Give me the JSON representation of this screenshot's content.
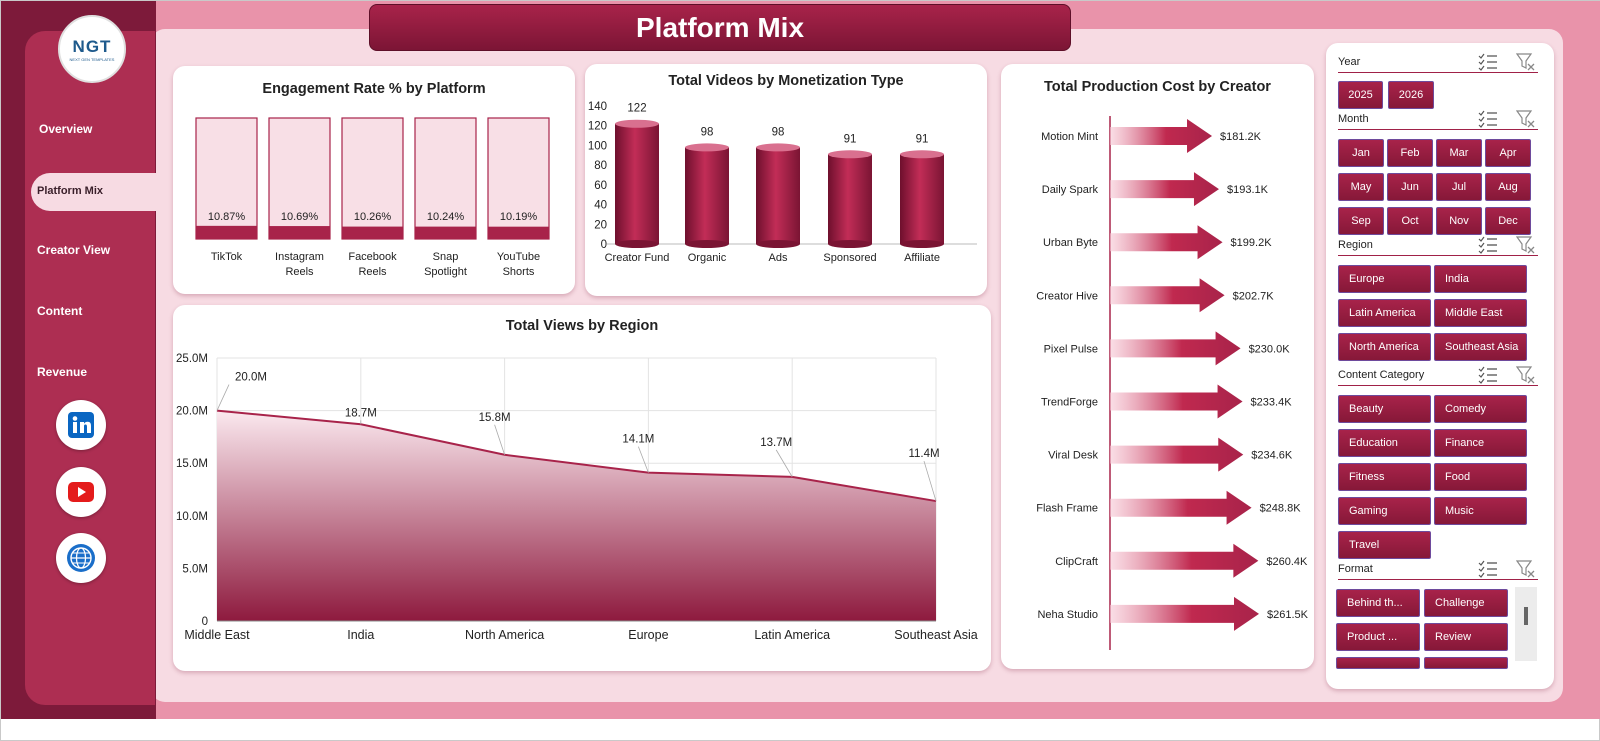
{
  "page_title": "Platform Mix",
  "logo": {
    "text": "NGT",
    "subtext": "NEXT GEN TEMPLATES"
  },
  "nav": {
    "items": [
      "Overview",
      "Platform Mix",
      "Creator View",
      "Content",
      "Revenue"
    ],
    "active": "Platform Mix"
  },
  "social": [
    "linkedin-icon",
    "youtube-icon",
    "globe-icon"
  ],
  "colors": {
    "primary": "#a8234a",
    "dark": "#7d1a3a",
    "background": "#f7dbe3",
    "accent": "#e993aa"
  },
  "engagement": {
    "title": "Engagement Rate % by Platform",
    "labels": [
      "10.87%",
      "10.69%",
      "10.26%",
      "10.24%",
      "10.19%"
    ]
  },
  "videos": {
    "title": "Total Videos by Monetization Type",
    "yticks": [
      "140",
      "120",
      "100",
      "80",
      "60",
      "40",
      "20",
      "0"
    ]
  },
  "views": {
    "title": "Total Views by Region",
    "yticks": [
      "25.0M",
      "20.0M",
      "15.0M",
      "10.0M",
      "5.0M",
      "0"
    ],
    "labels": [
      "20.0M",
      "18.7M",
      "15.8M",
      "14.1M",
      "13.7M",
      "11.4M"
    ]
  },
  "cost": {
    "title": "Total Production Cost by Creator",
    "labels": [
      "$181.2K",
      "$193.1K",
      "$199.2K",
      "$202.7K",
      "$230.0K",
      "$233.4K",
      "$234.6K",
      "$248.8K",
      "$260.4K",
      "$261.5K"
    ]
  },
  "chart_data": [
    {
      "type": "bar",
      "title": "Engagement Rate % by Platform",
      "categories": [
        "TikTok",
        "Instagram Reels",
        "Facebook Reels",
        "Snap Spotlight",
        "YouTube Shorts"
      ],
      "values": [
        10.87,
        10.69,
        10.26,
        10.24,
        10.19
      ],
      "ylim": [
        0,
        100
      ]
    },
    {
      "type": "bar",
      "title": "Total Videos by Monetization Type",
      "categories": [
        "Creator Fund",
        "Organic",
        "Ads",
        "Sponsored",
        "Affiliate"
      ],
      "values": [
        122,
        98,
        98,
        91,
        91
      ],
      "ylim": [
        0,
        140
      ]
    },
    {
      "type": "area",
      "title": "Total Views by Region",
      "categories": [
        "Middle East",
        "India",
        "North America",
        "Europe",
        "Latin America",
        "Southeast Asia"
      ],
      "values": [
        20.0,
        18.7,
        15.8,
        14.1,
        13.7,
        11.4
      ],
      "ylim": [
        0,
        25
      ],
      "grid": true
    },
    {
      "type": "bar",
      "title": "Total Production Cost by Creator",
      "categories": [
        "Motion Mint",
        "Daily Spark",
        "Urban Byte",
        "Creator Hive",
        "Pixel Pulse",
        "TrendForge",
        "Viral Desk",
        "Flash Frame",
        "ClipCraft",
        "Neha Studio"
      ],
      "values": [
        181.2,
        193.1,
        199.2,
        202.7,
        230.0,
        233.4,
        234.6,
        248.8,
        260.4,
        261.5
      ]
    }
  ],
  "filters": {
    "year": {
      "label": "Year",
      "options": [
        "2025",
        "2026"
      ]
    },
    "month": {
      "label": "Month",
      "options": [
        "Jan",
        "Feb",
        "Mar",
        "Apr",
        "May",
        "Jun",
        "Jul",
        "Aug",
        "Sep",
        "Oct",
        "Nov",
        "Dec"
      ]
    },
    "region": {
      "label": "Region",
      "options": [
        "Europe",
        "India",
        "Latin America",
        "Middle East",
        "North America",
        "Southeast Asia"
      ]
    },
    "category": {
      "label": "Content Category",
      "options": [
        "Beauty",
        "Comedy",
        "Education",
        "Finance",
        "Fitness",
        "Food",
        "Gaming",
        "Music",
        "Travel"
      ]
    },
    "format": {
      "label": "Format",
      "options": [
        "Behind th...",
        "Challenge",
        "Product ...",
        "Review"
      ]
    }
  }
}
